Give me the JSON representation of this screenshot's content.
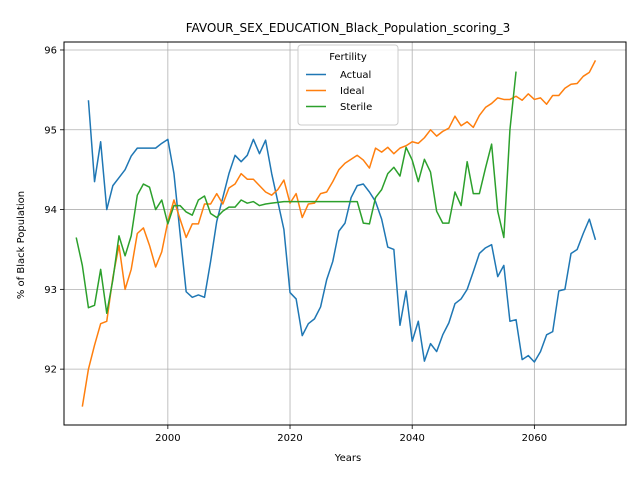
{
  "chart_data": {
    "type": "line",
    "title": "FAVOUR_SEX_EDUCATION_Black_Population_scoring_3",
    "xlabel": "Years",
    "ylabel": "% of Black Population",
    "xlim": [
      1983,
      2075
    ],
    "ylim": [
      91.3,
      96.1
    ],
    "x_ticks": [
      2000,
      2020,
      2040,
      2060
    ],
    "y_ticks": [
      92,
      93,
      94,
      95,
      96
    ],
    "grid": true,
    "legend": {
      "title": "Fertility",
      "placement": "top-center"
    },
    "series": [
      {
        "name": "Actual",
        "color": "#1f77b4",
        "points": [
          [
            1987,
            95.37
          ],
          [
            1988,
            94.35
          ],
          [
            1989,
            94.85
          ],
          [
            1990,
            94.0
          ],
          [
            1991,
            94.3
          ],
          [
            1992,
            94.4
          ],
          [
            1993,
            94.5
          ],
          [
            1994,
            94.67
          ],
          [
            1995,
            94.77
          ],
          [
            1996,
            94.77
          ],
          [
            1997,
            94.77
          ],
          [
            1998,
            94.77
          ],
          [
            1999,
            94.83
          ],
          [
            2000,
            94.88
          ],
          [
            2001,
            94.45
          ],
          [
            2002,
            93.7
          ],
          [
            2003,
            92.97
          ],
          [
            2004,
            92.9
          ],
          [
            2005,
            92.93
          ],
          [
            2006,
            92.9
          ],
          [
            2007,
            93.35
          ],
          [
            2008,
            93.85
          ],
          [
            2009,
            94.15
          ],
          [
            2010,
            94.45
          ],
          [
            2011,
            94.68
          ],
          [
            2012,
            94.6
          ],
          [
            2013,
            94.68
          ],
          [
            2014,
            94.88
          ],
          [
            2015,
            94.7
          ],
          [
            2016,
            94.87
          ],
          [
            2017,
            94.45
          ],
          [
            2018,
            94.1
          ],
          [
            2019,
            93.75
          ],
          [
            2020,
            92.96
          ],
          [
            2021,
            92.88
          ],
          [
            2022,
            92.42
          ],
          [
            2023,
            92.57
          ],
          [
            2024,
            92.63
          ],
          [
            2025,
            92.78
          ],
          [
            2026,
            93.12
          ],
          [
            2027,
            93.35
          ],
          [
            2028,
            93.73
          ],
          [
            2029,
            93.83
          ],
          [
            2030,
            94.15
          ],
          [
            2031,
            94.3
          ],
          [
            2032,
            94.32
          ],
          [
            2033,
            94.22
          ],
          [
            2034,
            94.1
          ],
          [
            2035,
            93.88
          ],
          [
            2036,
            93.53
          ],
          [
            2037,
            93.5
          ],
          [
            2038,
            92.55
          ],
          [
            2039,
            92.98
          ],
          [
            2040,
            92.35
          ],
          [
            2041,
            92.6
          ],
          [
            2042,
            92.1
          ],
          [
            2043,
            92.32
          ],
          [
            2044,
            92.22
          ],
          [
            2045,
            92.43
          ],
          [
            2046,
            92.58
          ],
          [
            2047,
            92.82
          ],
          [
            2048,
            92.88
          ],
          [
            2049,
            93.0
          ],
          [
            2050,
            93.22
          ],
          [
            2051,
            93.45
          ],
          [
            2052,
            93.52
          ],
          [
            2053,
            93.56
          ],
          [
            2054,
            93.16
          ],
          [
            2055,
            93.3
          ],
          [
            2056,
            92.6
          ],
          [
            2057,
            92.62
          ],
          [
            2058,
            92.12
          ],
          [
            2059,
            92.17
          ],
          [
            2060,
            92.09
          ],
          [
            2061,
            92.22
          ],
          [
            2062,
            92.43
          ],
          [
            2063,
            92.47
          ],
          [
            2064,
            92.98
          ],
          [
            2065,
            93.0
          ],
          [
            2066,
            93.45
          ],
          [
            2067,
            93.5
          ],
          [
            2068,
            93.7
          ],
          [
            2069,
            93.88
          ],
          [
            2070,
            93.62
          ]
        ]
      },
      {
        "name": "Ideal",
        "color": "#ff7f0e",
        "points": [
          [
            1986,
            91.53
          ],
          [
            1987,
            92.0
          ],
          [
            1988,
            92.3
          ],
          [
            1989,
            92.57
          ],
          [
            1990,
            92.6
          ],
          [
            1991,
            93.15
          ],
          [
            1992,
            93.55
          ],
          [
            1993,
            93.0
          ],
          [
            1994,
            93.25
          ],
          [
            1995,
            93.7
          ],
          [
            1996,
            93.77
          ],
          [
            1997,
            93.55
          ],
          [
            1998,
            93.28
          ],
          [
            1999,
            93.47
          ],
          [
            2000,
            93.85
          ],
          [
            2001,
            94.12
          ],
          [
            2002,
            93.88
          ],
          [
            2003,
            93.65
          ],
          [
            2004,
            93.82
          ],
          [
            2005,
            93.82
          ],
          [
            2006,
            94.07
          ],
          [
            2007,
            94.07
          ],
          [
            2008,
            94.2
          ],
          [
            2009,
            94.07
          ],
          [
            2010,
            94.27
          ],
          [
            2011,
            94.32
          ],
          [
            2012,
            94.45
          ],
          [
            2013,
            94.38
          ],
          [
            2014,
            94.38
          ],
          [
            2015,
            94.3
          ],
          [
            2016,
            94.22
          ],
          [
            2017,
            94.18
          ],
          [
            2018,
            94.25
          ],
          [
            2019,
            94.37
          ],
          [
            2020,
            94.08
          ],
          [
            2021,
            94.2
          ],
          [
            2022,
            93.9
          ],
          [
            2023,
            94.07
          ],
          [
            2024,
            94.08
          ],
          [
            2025,
            94.2
          ],
          [
            2026,
            94.22
          ],
          [
            2027,
            94.35
          ],
          [
            2028,
            94.5
          ],
          [
            2029,
            94.58
          ],
          [
            2030,
            94.63
          ],
          [
            2031,
            94.68
          ],
          [
            2032,
            94.62
          ],
          [
            2033,
            94.52
          ],
          [
            2034,
            94.77
          ],
          [
            2035,
            94.72
          ],
          [
            2036,
            94.78
          ],
          [
            2037,
            94.7
          ],
          [
            2038,
            94.77
          ],
          [
            2039,
            94.8
          ],
          [
            2040,
            94.85
          ],
          [
            2041,
            94.83
          ],
          [
            2042,
            94.9
          ],
          [
            2043,
            95.0
          ],
          [
            2044,
            94.92
          ],
          [
            2045,
            94.98
          ],
          [
            2046,
            95.02
          ],
          [
            2047,
            95.17
          ],
          [
            2048,
            95.05
          ],
          [
            2049,
            95.1
          ],
          [
            2050,
            95.03
          ],
          [
            2051,
            95.18
          ],
          [
            2052,
            95.28
          ],
          [
            2053,
            95.33
          ],
          [
            2054,
            95.4
          ],
          [
            2055,
            95.38
          ],
          [
            2056,
            95.38
          ],
          [
            2057,
            95.42
          ],
          [
            2058,
            95.37
          ],
          [
            2059,
            95.45
          ],
          [
            2060,
            95.38
          ],
          [
            2061,
            95.4
          ],
          [
            2062,
            95.32
          ],
          [
            2063,
            95.43
          ],
          [
            2064,
            95.43
          ],
          [
            2065,
            95.52
          ],
          [
            2066,
            95.57
          ],
          [
            2067,
            95.58
          ],
          [
            2068,
            95.67
          ],
          [
            2069,
            95.72
          ],
          [
            2070,
            95.87
          ]
        ]
      },
      {
        "name": "Sterile",
        "color": "#2ca02c",
        "points": [
          [
            1985,
            93.65
          ],
          [
            1986,
            93.3
          ],
          [
            1987,
            92.77
          ],
          [
            1988,
            92.8
          ],
          [
            1989,
            93.25
          ],
          [
            1990,
            92.7
          ],
          [
            1991,
            93.12
          ],
          [
            1992,
            93.67
          ],
          [
            1993,
            93.42
          ],
          [
            1994,
            93.67
          ],
          [
            1995,
            94.18
          ],
          [
            1996,
            94.32
          ],
          [
            1997,
            94.28
          ],
          [
            1998,
            94.0
          ],
          [
            1999,
            94.12
          ],
          [
            2000,
            93.82
          ],
          [
            2001,
            94.05
          ],
          [
            2002,
            94.05
          ],
          [
            2003,
            93.97
          ],
          [
            2004,
            93.93
          ],
          [
            2005,
            94.12
          ],
          [
            2006,
            94.17
          ],
          [
            2007,
            93.95
          ],
          [
            2008,
            93.9
          ],
          [
            2009,
            93.98
          ],
          [
            2010,
            94.03
          ],
          [
            2011,
            94.03
          ],
          [
            2012,
            94.12
          ],
          [
            2013,
            94.08
          ],
          [
            2014,
            94.1
          ],
          [
            2015,
            94.05
          ],
          [
            2016,
            94.07
          ],
          [
            2017,
            94.08
          ],
          [
            2018,
            94.09
          ],
          [
            2019,
            94.1
          ],
          [
            2020,
            94.1
          ],
          [
            2021,
            94.1
          ],
          [
            2022,
            94.1
          ],
          [
            2023,
            94.1
          ],
          [
            2024,
            94.1
          ],
          [
            2025,
            94.1
          ],
          [
            2026,
            94.1
          ],
          [
            2027,
            94.1
          ],
          [
            2028,
            94.1
          ],
          [
            2029,
            94.1
          ],
          [
            2030,
            94.1
          ],
          [
            2031,
            94.1
          ],
          [
            2032,
            93.83
          ],
          [
            2033,
            93.82
          ],
          [
            2034,
            94.15
          ],
          [
            2035,
            94.25
          ],
          [
            2036,
            94.45
          ],
          [
            2037,
            94.53
          ],
          [
            2038,
            94.42
          ],
          [
            2039,
            94.78
          ],
          [
            2040,
            94.62
          ],
          [
            2041,
            94.35
          ],
          [
            2042,
            94.63
          ],
          [
            2043,
            94.47
          ],
          [
            2044,
            93.98
          ],
          [
            2045,
            93.83
          ],
          [
            2046,
            93.83
          ],
          [
            2047,
            94.22
          ],
          [
            2048,
            94.05
          ],
          [
            2049,
            94.6
          ],
          [
            2050,
            94.2
          ],
          [
            2051,
            94.2
          ],
          [
            2052,
            94.52
          ],
          [
            2053,
            94.82
          ],
          [
            2054,
            93.98
          ],
          [
            2055,
            93.65
          ],
          [
            2056,
            95.0
          ],
          [
            2057,
            95.73
          ]
        ]
      }
    ]
  }
}
